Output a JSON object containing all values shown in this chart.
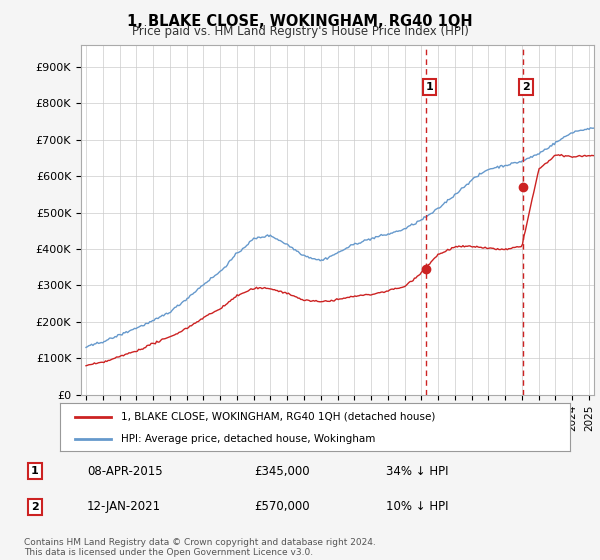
{
  "title": "1, BLAKE CLOSE, WOKINGHAM, RG40 1QH",
  "subtitle": "Price paid vs. HM Land Registry's House Price Index (HPI)",
  "ylabel_ticks": [
    "£0",
    "£100K",
    "£200K",
    "£300K",
    "£400K",
    "£500K",
    "£600K",
    "£700K",
    "£800K",
    "£900K"
  ],
  "ytick_values": [
    0,
    100000,
    200000,
    300000,
    400000,
    500000,
    600000,
    700000,
    800000,
    900000
  ],
  "ylim": [
    0,
    960000
  ],
  "xlim_start": 1994.7,
  "xlim_end": 2025.3,
  "hpi_color": "#6699cc",
  "price_color": "#cc2222",
  "sale1_x": 2015.27,
  "sale1_y": 345000,
  "sale2_x": 2021.04,
  "sale2_y": 570000,
  "legend_label1": "1, BLAKE CLOSE, WOKINGHAM, RG40 1QH (detached house)",
  "legend_label2": "HPI: Average price, detached house, Wokingham",
  "table_row1": [
    "1",
    "08-APR-2015",
    "£345,000",
    "34% ↓ HPI"
  ],
  "table_row2": [
    "2",
    "12-JAN-2021",
    "£570,000",
    "10% ↓ HPI"
  ],
  "footer": "Contains HM Land Registry data © Crown copyright and database right 2024.\nThis data is licensed under the Open Government Licence v3.0.",
  "bg_color": "#f5f5f5",
  "plot_bg": "#ffffff",
  "grid_color": "#cccccc",
  "vline_color": "#cc2222",
  "hpi_points_t": [
    0,
    1,
    2,
    3,
    4,
    5,
    6,
    7,
    8,
    9,
    10,
    11,
    12,
    13,
    14,
    15,
    16,
    17,
    18,
    19,
    20,
    21,
    22,
    23,
    24,
    25,
    26,
    27,
    28,
    29,
    30
  ],
  "hpi_points_v": [
    130000,
    145000,
    165000,
    185000,
    205000,
    230000,
    265000,
    305000,
    340000,
    390000,
    430000,
    440000,
    415000,
    385000,
    370000,
    390000,
    415000,
    430000,
    440000,
    455000,
    480000,
    510000,
    550000,
    590000,
    620000,
    630000,
    640000,
    660000,
    690000,
    720000,
    730000
  ],
  "price_points_t": [
    0,
    1,
    2,
    3,
    4,
    5,
    6,
    7,
    8,
    9,
    10,
    11,
    12,
    13,
    14,
    15,
    16,
    17,
    18,
    19,
    20,
    21,
    22,
    23,
    24,
    25,
    26,
    27,
    28,
    29,
    30
  ],
  "price_points_v": [
    80000,
    90000,
    105000,
    120000,
    140000,
    158000,
    182000,
    210000,
    235000,
    270000,
    290000,
    290000,
    275000,
    255000,
    250000,
    255000,
    265000,
    270000,
    280000,
    290000,
    330000,
    380000,
    400000,
    400000,
    395000,
    390000,
    400000,
    610000,
    650000,
    645000,
    648000
  ]
}
